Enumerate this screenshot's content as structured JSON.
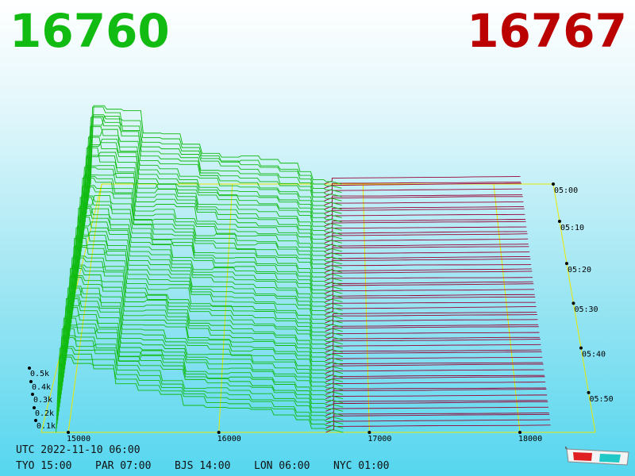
{
  "header": {
    "bid_price": "16760",
    "ask_price": "16767",
    "bid_color": "#11bb11",
    "ask_color": "#bb0000"
  },
  "footer": {
    "utc_line": "UTC 2022-11-10 06:00",
    "timezones": [
      {
        "label": "TYO 15:00"
      },
      {
        "label": "PAR 07:00"
      },
      {
        "label": "BJS 14:00"
      },
      {
        "label": "LON 06:00"
      },
      {
        "label": "NYC 01:00"
      }
    ]
  },
  "icons": {
    "glasses": "3d-glasses-icon"
  },
  "chart_data": {
    "type": "area",
    "title": "",
    "x_axis": {
      "ticks": [
        "15000",
        "16000",
        "17000",
        "18000"
      ],
      "values": [
        15000,
        16000,
        17000,
        18000
      ]
    },
    "time_axis": {
      "ticks": [
        "05:00",
        "05:10",
        "05:20",
        "05:30",
        "05:40",
        "05:50"
      ]
    },
    "volume_axis": {
      "ticks": [
        "0.1k",
        "0.2k",
        "0.3k",
        "0.4k",
        "0.5k"
      ]
    },
    "mid_price_range": [
      16760,
      16767
    ],
    "bid_color": "#11bb11",
    "ask_color": "#990033",
    "grid_color": "#e8e800",
    "series": [
      {
        "name": "bids",
        "side": "bid",
        "snapshots": 60
      },
      {
        "name": "asks",
        "side": "ask",
        "snapshots": 60
      }
    ]
  }
}
